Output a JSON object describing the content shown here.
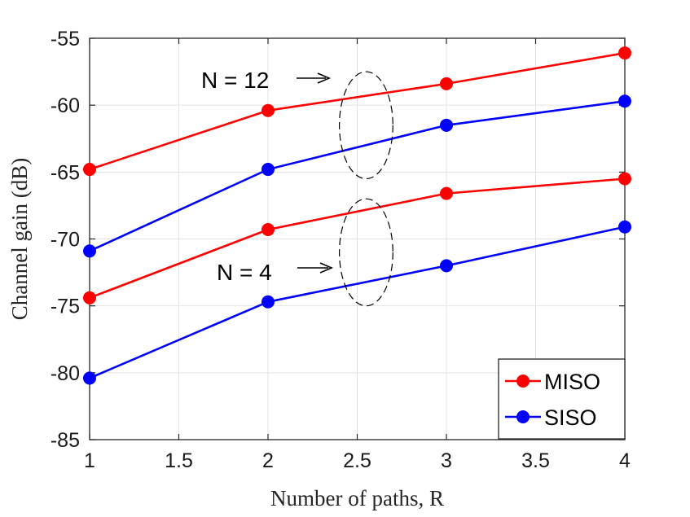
{
  "chart_data": {
    "type": "line",
    "title": "",
    "xlabel": "Number of paths, R",
    "ylabel": "Channel gain (dB)",
    "xlim": [
      1,
      4
    ],
    "ylim": [
      -85,
      -55
    ],
    "xticks": [
      1,
      1.5,
      2,
      2.5,
      3,
      3.5,
      4
    ],
    "xtick_labels": [
      "1",
      "1.5",
      "2",
      "2.5",
      "3",
      "3.5",
      "4"
    ],
    "yticks": [
      -55,
      -60,
      -65,
      -70,
      -75,
      -80,
      -85
    ],
    "ytick_labels": [
      "-55",
      "-60",
      "-65",
      "-70",
      "-75",
      "-80",
      "-85"
    ],
    "grid": true,
    "legend_position": "bottom-right",
    "legend": [
      {
        "name": "MISO",
        "color": "#ff0000"
      },
      {
        "name": "SISO",
        "color": "#0000ff"
      }
    ],
    "x": [
      1,
      2,
      3,
      4
    ],
    "series": [
      {
        "name": "MISO",
        "group": "N = 12",
        "color": "#ff0000",
        "values": [
          -64.8,
          -60.4,
          -58.4,
          -56.1
        ]
      },
      {
        "name": "SISO",
        "group": "N = 12",
        "color": "#0000ff",
        "values": [
          -70.9,
          -64.8,
          -61.5,
          -59.7
        ]
      },
      {
        "name": "MISO",
        "group": "N = 4",
        "color": "#ff0000",
        "values": [
          -74.4,
          -69.3,
          -66.6,
          -65.5
        ]
      },
      {
        "name": "SISO",
        "group": "N = 4",
        "color": "#0000ff",
        "values": [
          -80.4,
          -74.7,
          -72.0,
          -69.1
        ]
      }
    ],
    "annotations": [
      {
        "id": "n12",
        "text": "N = 12",
        "ellipse_center": [
          2.55,
          -61.5
        ],
        "ellipse_radii": [
          0.15,
          4.0
        ]
      },
      {
        "id": "n4",
        "text": "N = 4",
        "ellipse_center": [
          2.55,
          -71.0
        ],
        "ellipse_radii": [
          0.15,
          4.0
        ]
      }
    ]
  }
}
